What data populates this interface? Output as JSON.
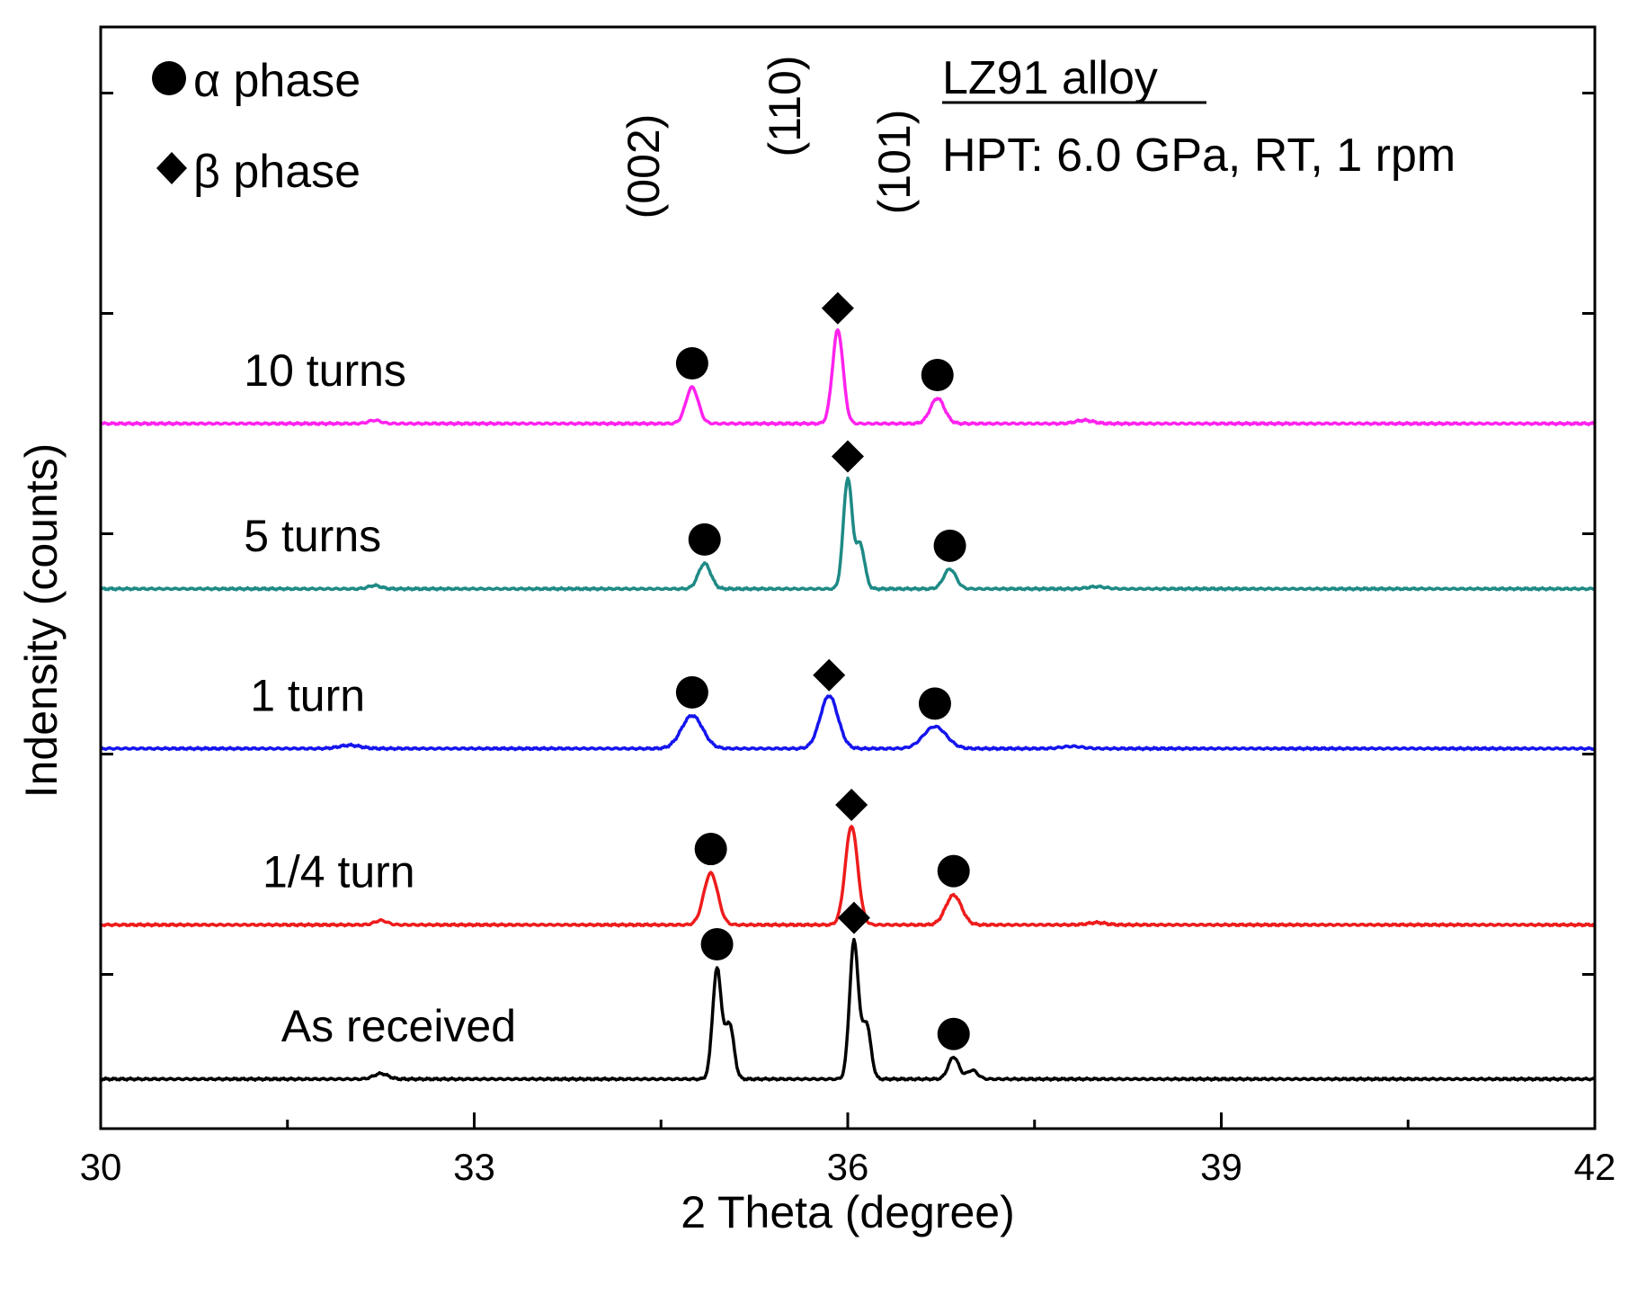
{
  "chart_data": {
    "type": "line",
    "title": "",
    "xlabel": "2 Theta (degree)",
    "ylabel": "Indensity (counts)",
    "xlim": [
      30,
      42
    ],
    "xticks": [
      30,
      33,
      36,
      39,
      42
    ],
    "xtick_labels": [
      "30",
      "33",
      "36",
      "39",
      "42"
    ],
    "ylim": [
      0,
      10
    ],
    "yticks": [
      1.4,
      3.4,
      5.4,
      7.4,
      9.4
    ],
    "grid": false,
    "legend": [
      {
        "marker": "circle",
        "text": "α phase"
      },
      {
        "marker": "diamond",
        "text": "β phase"
      }
    ],
    "sample_title": "LZ91 alloy",
    "conditions": "HPT: 6.0 GPa, RT, 1 rpm",
    "plane_labels": [
      {
        "text": "(002)",
        "x": 34.5
      },
      {
        "text": "(110)",
        "x": 35.5
      },
      {
        "text": "(101)",
        "x": 36.45
      }
    ],
    "series": [
      {
        "name": "As received",
        "color": "#000000",
        "baseline": 0.45,
        "label_x": 31.45,
        "bumps": [
          [
            32.25,
            0.05,
            0.08
          ]
        ],
        "peaks": [
          {
            "x": 34.95,
            "h": 1.0,
            "w": 0.05,
            "phase": "alpha"
          },
          {
            "x": 35.05,
            "h": 0.5,
            "w": 0.05
          },
          {
            "x": 36.05,
            "h": 1.25,
            "w": 0.05,
            "phase": "beta"
          },
          {
            "x": 36.15,
            "h": 0.5,
            "w": 0.05
          },
          {
            "x": 36.85,
            "h": 0.2,
            "w": 0.06,
            "phase": "alpha"
          },
          {
            "x": 37.0,
            "h": 0.08,
            "w": 0.06
          }
        ]
      },
      {
        "name": "1/4 turn",
        "color": "#ee1c1c",
        "baseline": 1.85,
        "label_x": 31.3,
        "bumps": [
          [
            32.25,
            0.04,
            0.07
          ],
          [
            38.0,
            0.02,
            0.1
          ]
        ],
        "peaks": [
          {
            "x": 34.9,
            "h": 0.47,
            "w": 0.08,
            "phase": "alpha"
          },
          {
            "x": 36.03,
            "h": 0.9,
            "w": 0.07,
            "phase": "beta"
          },
          {
            "x": 36.85,
            "h": 0.27,
            "w": 0.09,
            "phase": "alpha"
          }
        ]
      },
      {
        "name": "1 turn",
        "color": "#1515ee",
        "baseline": 3.45,
        "label_x": 31.2,
        "bumps": [
          [
            32.0,
            0.03,
            0.12
          ],
          [
            37.8,
            0.02,
            0.12
          ]
        ],
        "peaks": [
          {
            "x": 34.75,
            "h": 0.3,
            "w": 0.12,
            "phase": "alpha"
          },
          {
            "x": 35.85,
            "h": 0.48,
            "w": 0.1,
            "phase": "beta"
          },
          {
            "x": 36.7,
            "h": 0.2,
            "w": 0.13,
            "phase": "alpha"
          }
        ]
      },
      {
        "name": "5 turns",
        "color": "#1e8a85",
        "baseline": 4.9,
        "label_x": 31.15,
        "bumps": [
          [
            32.2,
            0.03,
            0.07
          ],
          [
            38.0,
            0.02,
            0.1
          ]
        ],
        "peaks": [
          {
            "x": 34.85,
            "h": 0.23,
            "w": 0.07,
            "phase": "alpha"
          },
          {
            "x": 36.0,
            "h": 1.0,
            "w": 0.05,
            "phase": "beta"
          },
          {
            "x": 36.1,
            "h": 0.4,
            "w": 0.05
          },
          {
            "x": 36.82,
            "h": 0.18,
            "w": 0.07,
            "phase": "alpha"
          }
        ]
      },
      {
        "name": "10 turns",
        "color": "#ff22ee",
        "baseline": 6.4,
        "label_x": 31.15,
        "bumps": [
          [
            32.2,
            0.03,
            0.07
          ],
          [
            37.9,
            0.03,
            0.1
          ]
        ],
        "peaks": [
          {
            "x": 34.75,
            "h": 0.33,
            "w": 0.07,
            "phase": "alpha"
          },
          {
            "x": 35.92,
            "h": 0.85,
            "w": 0.06,
            "phase": "beta"
          },
          {
            "x": 36.72,
            "h": 0.23,
            "w": 0.08,
            "phase": "alpha"
          }
        ]
      }
    ]
  }
}
